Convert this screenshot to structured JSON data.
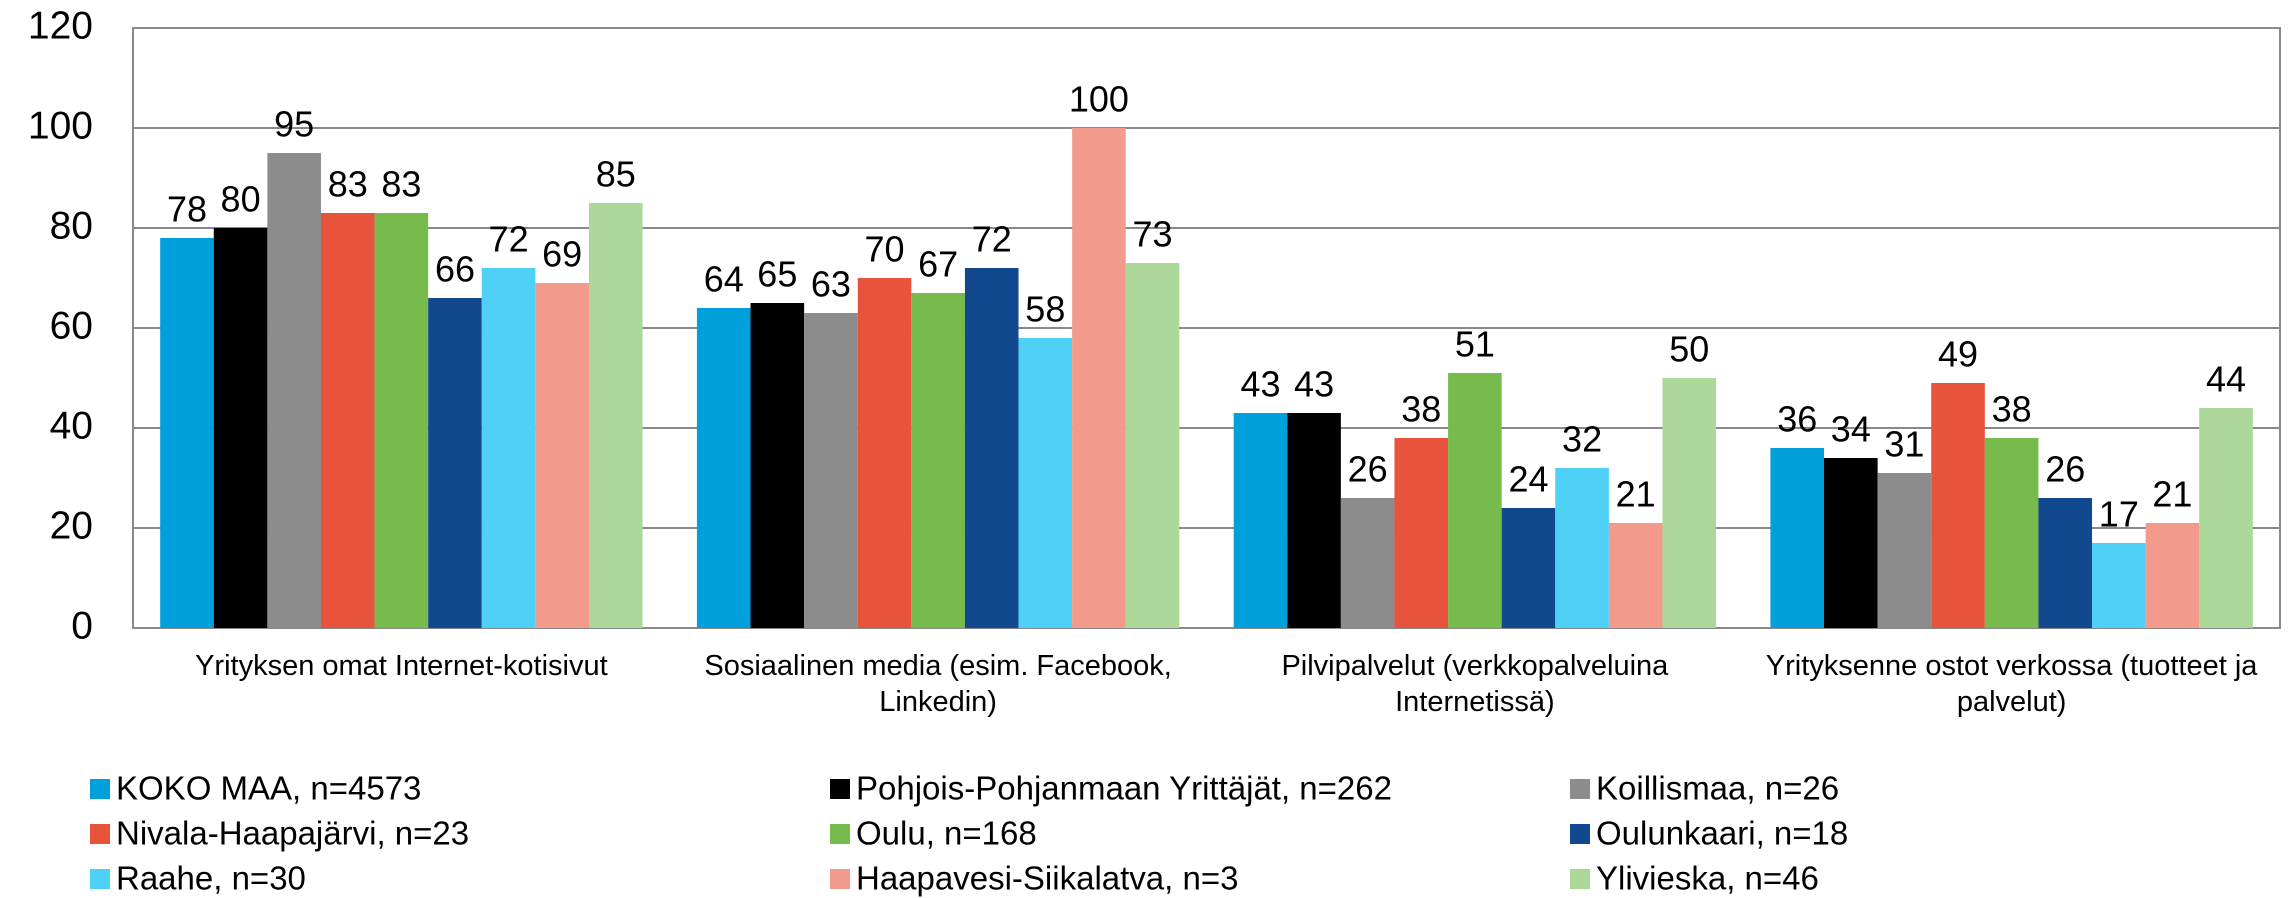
{
  "chart_data": {
    "type": "bar",
    "categories": [
      "Yrityksen omat Internet-kotisivut",
      "Sosiaalinen media (esim. Facebook, Linkedin)",
      "Pilvipalvelut  (verkkopalveluina Internetissä)",
      "Yrityksenne ostot verkossa (tuotteet ja palvelut)"
    ],
    "series": [
      {
        "name": "KOKO MAA, n=4573",
        "color": "#00a0dc",
        "values": [
          78,
          64,
          43,
          36
        ]
      },
      {
        "name": "Pohjois-Pohjanmaan Yrittäjät, n=262",
        "color": "#000000",
        "values": [
          80,
          65,
          43,
          34
        ]
      },
      {
        "name": "Koillismaa, n=26",
        "color": "#8c8c8c",
        "values": [
          95,
          63,
          26,
          31
        ]
      },
      {
        "name": "Nivala-Haapajärvi, n=23",
        "color": "#e8533c",
        "values": [
          83,
          70,
          38,
          49
        ]
      },
      {
        "name": "Oulu, n=168",
        "color": "#77bb4d",
        "values": [
          83,
          67,
          51,
          38
        ]
      },
      {
        "name": "Oulunkaari, n=18",
        "color": "#11488e",
        "values": [
          66,
          72,
          24,
          26
        ]
      },
      {
        "name": "Raahe, n=30",
        "color": "#4fd1f7",
        "values": [
          72,
          58,
          32,
          17
        ]
      },
      {
        "name": "Haapavesi-Siikalatva, n=3",
        "color": "#f29a8c",
        "values": [
          69,
          100,
          21,
          21
        ]
      },
      {
        "name": "Ylivieska, n=46",
        "color": "#acd89a",
        "values": [
          85,
          73,
          50,
          44
        ]
      }
    ],
    "ylim": [
      0,
      120
    ],
    "yticks": [
      0,
      20,
      40,
      60,
      80,
      100,
      120
    ],
    "grid": true,
    "legend": "bottom"
  }
}
